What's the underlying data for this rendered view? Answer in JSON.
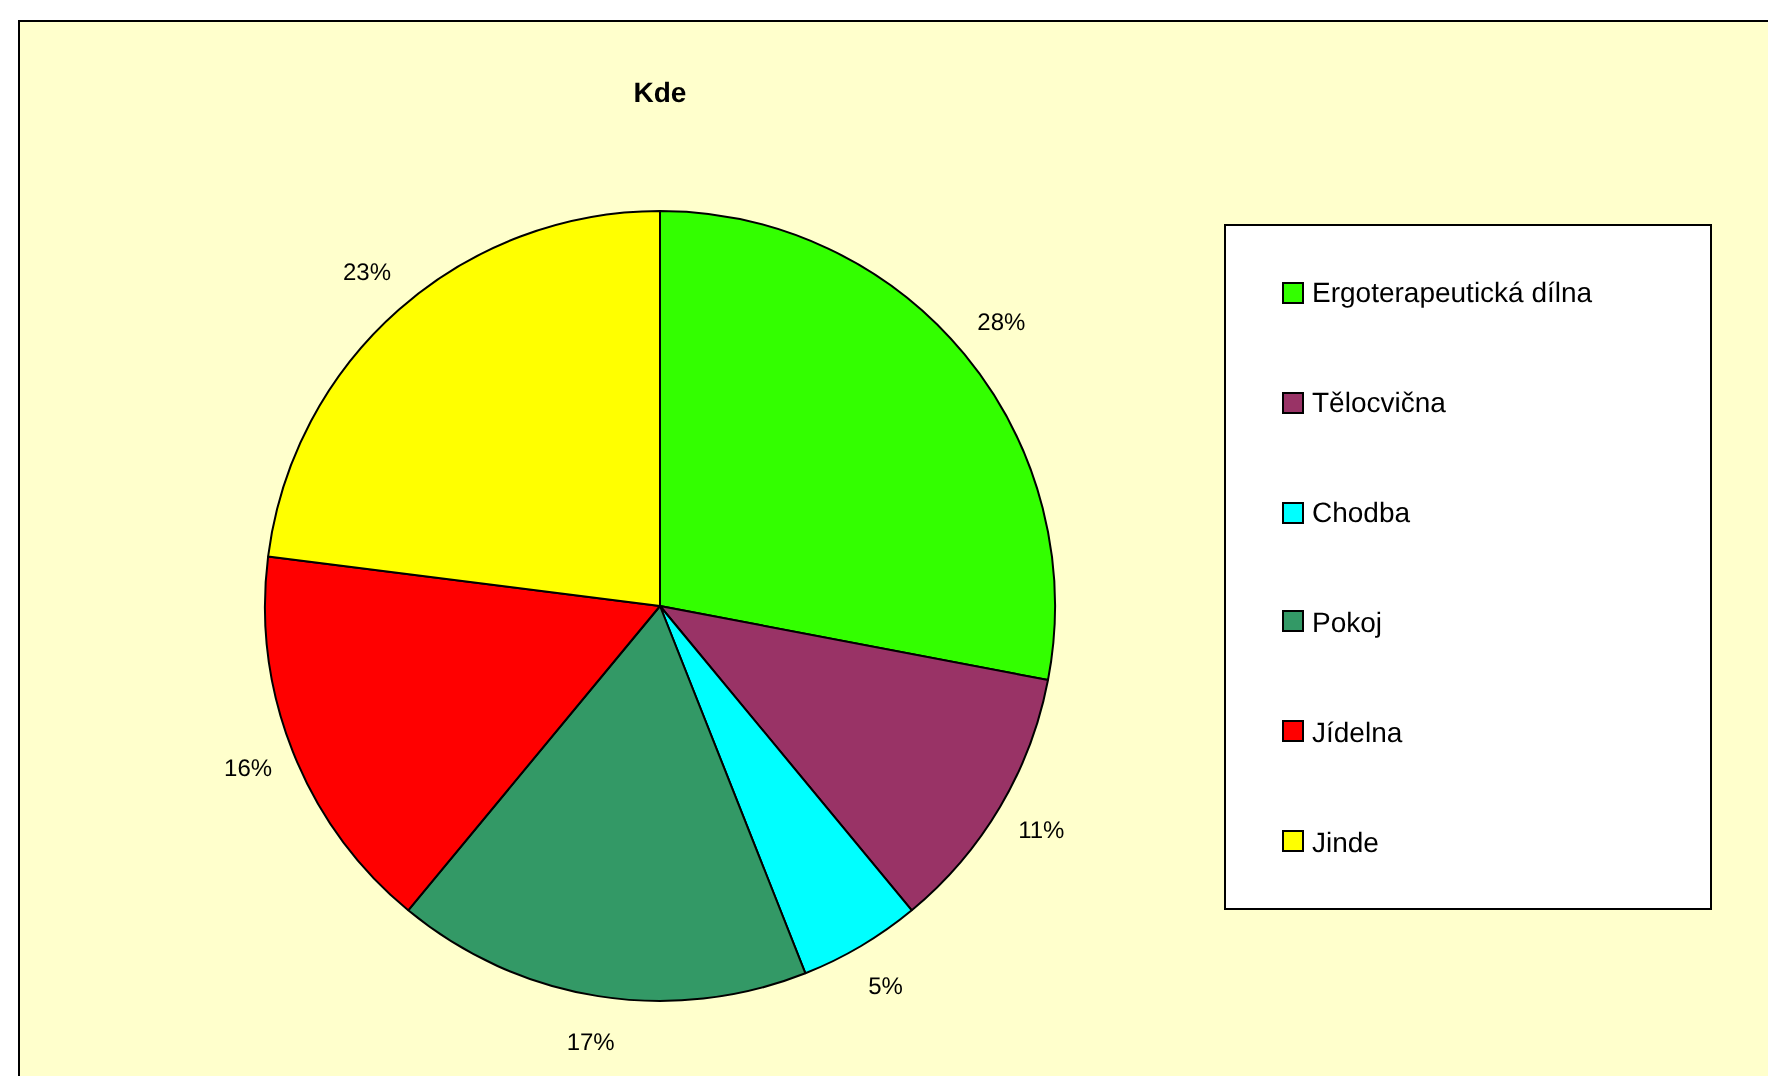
{
  "chart_data": {
    "type": "pie",
    "title": "Kde",
    "categories": [
      "Ergoterapeutická dílna",
      "Tělocvična",
      "Chodba",
      "Pokoj",
      "Jídelna",
      "Jinde"
    ],
    "values": [
      28,
      11,
      5,
      17,
      16,
      23
    ],
    "colors": [
      "#33ff00",
      "#993366",
      "#00ffff",
      "#339966",
      "#ff0000",
      "#ffff00"
    ],
    "value_labels": [
      "28%",
      "11%",
      "5%",
      "17%",
      "16%",
      "23%"
    ],
    "legend": "right"
  }
}
